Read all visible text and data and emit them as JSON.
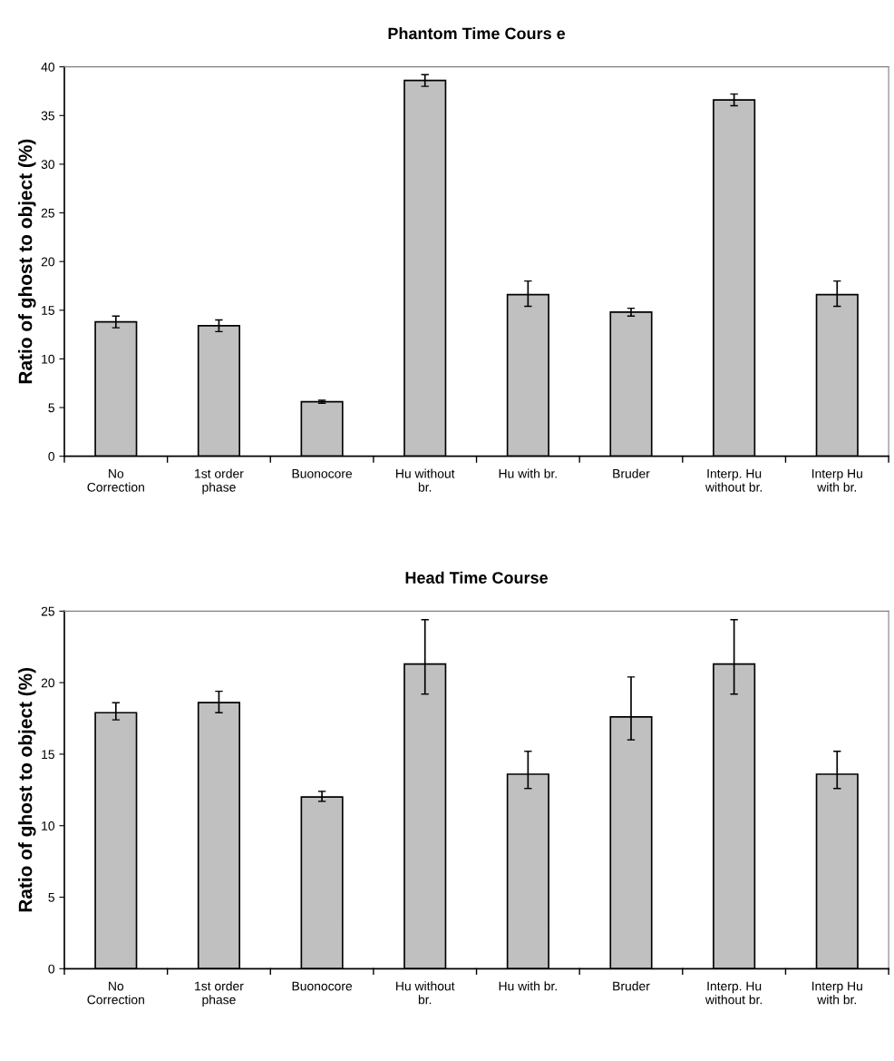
{
  "chart_data": [
    {
      "type": "bar",
      "title": "Phantom Time Cours e",
      "ylabel": "Ratio of ghost to object (%)",
      "categories": [
        "No\nCorrection",
        "1st order\nphase",
        "Buonocore",
        "Hu without\nbr.",
        "Hu with br.",
        "Bruder",
        "Interp. Hu\nwithout br.",
        "Interp Hu\nwith br."
      ],
      "values": [
        13.8,
        13.4,
        5.6,
        38.6,
        16.6,
        14.8,
        36.6,
        16.6
      ],
      "errors": [
        0.6,
        0.6,
        0.15,
        0.6,
        [
          15.4,
          18.0
        ],
        0.4,
        0.6,
        [
          15.4,
          18.0
        ]
      ],
      "color": "#c0c0c0",
      "ylim": [
        0,
        40
      ],
      "yticks": [
        0,
        5,
        10,
        15,
        20,
        25,
        30,
        35,
        40
      ],
      "grid": false
    },
    {
      "type": "bar",
      "title": "Head Time Course",
      "ylabel": "Ratio of ghost to object (%)",
      "categories": [
        "No\nCorrection",
        "1st order\nphase",
        "Buonocore",
        "Hu without\nbr.",
        "Hu with br.",
        "Bruder",
        "Interp. Hu\nwithout br.",
        "Interp Hu\nwith br."
      ],
      "values": [
        17.9,
        18.6,
        12.0,
        21.3,
        13.6,
        17.6,
        21.3,
        13.6
      ],
      "errors": [
        [
          17.4,
          18.6
        ],
        [
          17.9,
          19.4
        ],
        [
          11.7,
          12.4
        ],
        [
          19.2,
          24.4
        ],
        [
          12.6,
          15.2
        ],
        [
          16.0,
          20.4
        ],
        [
          19.2,
          24.4
        ],
        [
          12.6,
          15.2
        ]
      ],
      "color": "#c0c0c0",
      "ylim": [
        0,
        25
      ],
      "yticks": [
        0,
        5,
        10,
        15,
        20,
        25
      ],
      "grid": false
    }
  ]
}
